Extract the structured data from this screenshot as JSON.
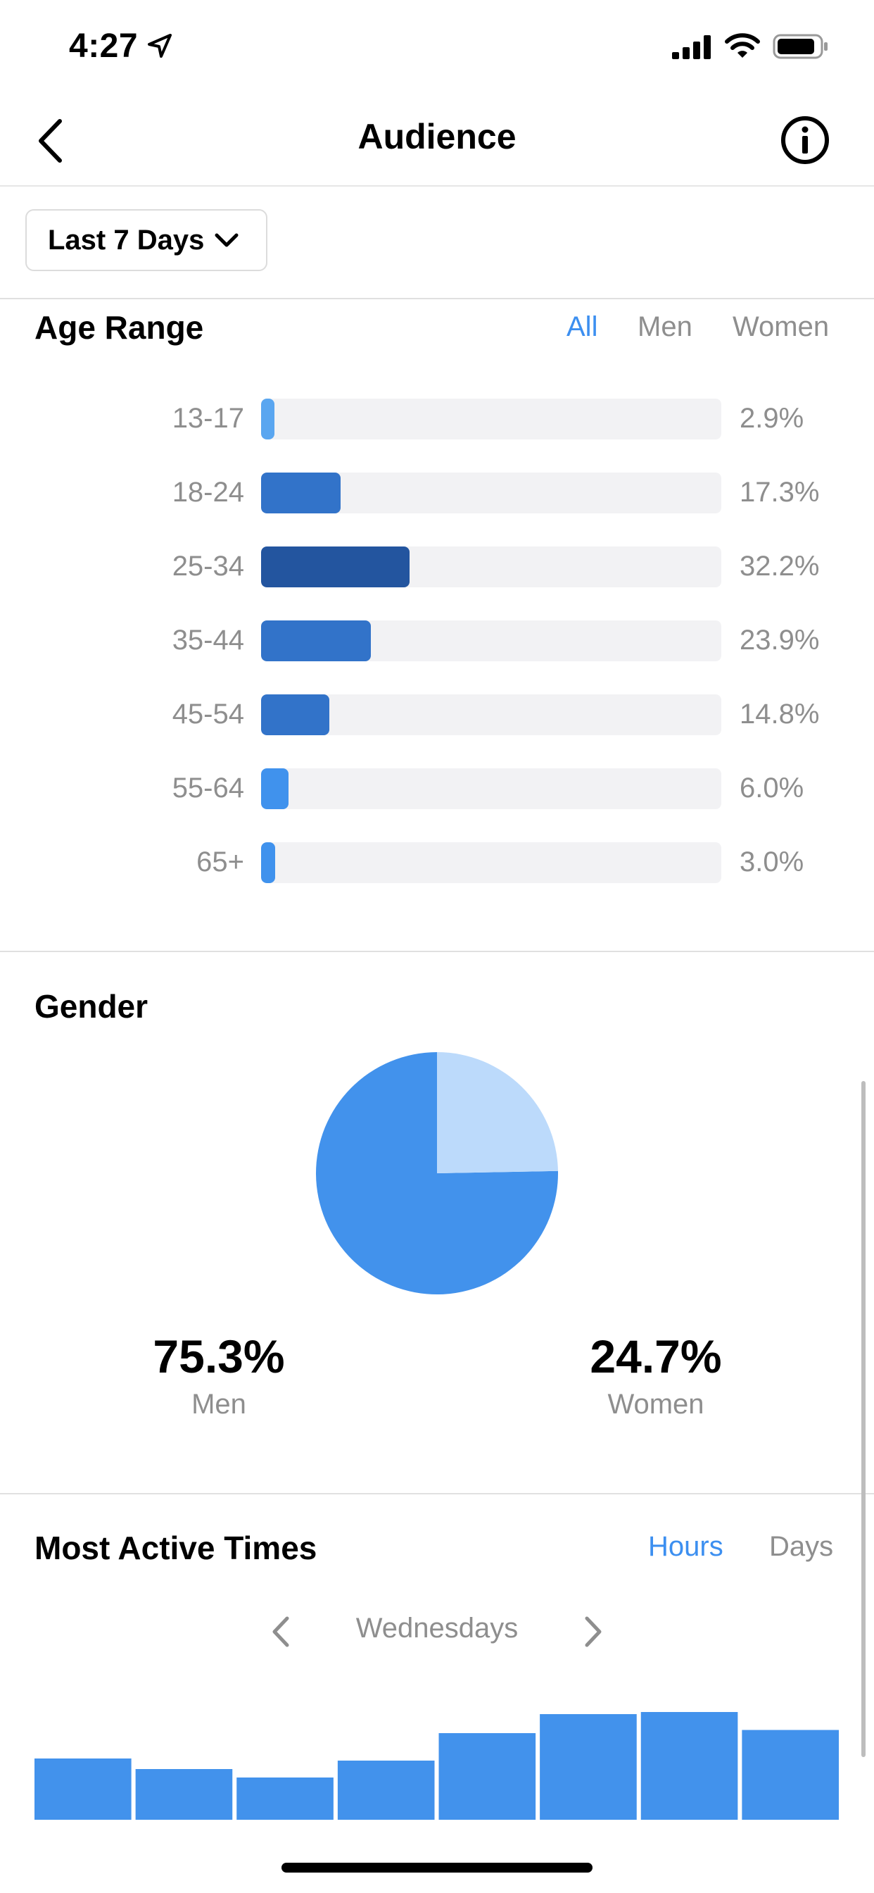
{
  "status_bar": {
    "time": "4:27"
  },
  "nav": {
    "title": "Audience"
  },
  "filter": {
    "period": "Last 7 Days"
  },
  "age_range": {
    "title": "Age Range",
    "segments": [
      "All",
      "Men",
      "Women"
    ],
    "active_segment": "All",
    "rows": [
      {
        "label": "13-17",
        "pct": "2.9%",
        "value": 2.9,
        "color": "#5aa6f0"
      },
      {
        "label": "18-24",
        "pct": "17.3%",
        "value": 17.3,
        "color": "#3273c9"
      },
      {
        "label": "25-34",
        "pct": "32.2%",
        "value": 32.2,
        "color": "#23559f"
      },
      {
        "label": "35-44",
        "pct": "23.9%",
        "value": 23.9,
        "color": "#3273c9"
      },
      {
        "label": "45-54",
        "pct": "14.8%",
        "value": 14.8,
        "color": "#3273c9"
      },
      {
        "label": "55-64",
        "pct": "6.0%",
        "value": 6.0,
        "color": "#4092ed"
      },
      {
        "label": "65+",
        "pct": "3.0%",
        "value": 3.0,
        "color": "#4092ed"
      }
    ]
  },
  "gender": {
    "title": "Gender",
    "men_value": "75.3%",
    "men_label": "Men",
    "women_value": "24.7%",
    "women_label": "Women",
    "men_share": 75.3,
    "women_share": 24.7,
    "men_color": "#4292ec",
    "women_color": "#bcdafb"
  },
  "active_times": {
    "title": "Most Active Times",
    "segments": [
      "Hours",
      "Days"
    ],
    "active_segment": "Hours",
    "day": "Wednesdays",
    "bar_color": "#4292ec",
    "bars_relative": [
      0.58,
      0.48,
      0.4,
      0.56,
      0.82,
      1.0,
      1.02,
      0.85
    ]
  },
  "colors": {
    "accent": "#3c8ff0",
    "muted_text": "#8e8e8e",
    "track": "#f2f2f4"
  }
}
